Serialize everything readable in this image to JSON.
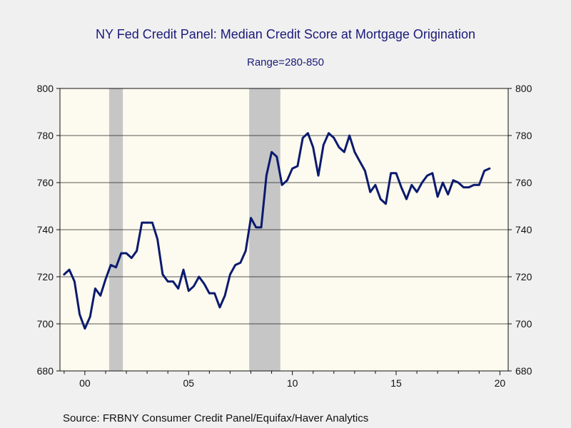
{
  "chart_data": {
    "type": "line",
    "title": "NY Fed Credit Panel: Median Credit Score at Mortgage Origination",
    "subtitle": "Range=280-850",
    "source": "Source:  FRBNY Consumer Credit Panel/Equifax/Haver Analytics",
    "xlabel": "",
    "ylabel": "",
    "xlim": [
      1998.8,
      2020.4
    ],
    "ylim": [
      680,
      800
    ],
    "y_ticks": [
      680,
      700,
      720,
      740,
      760,
      780,
      800
    ],
    "x_ticks": [
      {
        "value": 2000,
        "label": "00"
      },
      {
        "value": 2005,
        "label": "05"
      },
      {
        "value": 2010,
        "label": "10"
      },
      {
        "value": 2015,
        "label": "15"
      },
      {
        "value": 2020,
        "label": "20"
      }
    ],
    "recessions": [
      [
        2001.17,
        2001.83
      ],
      [
        2007.92,
        2009.42
      ]
    ],
    "grid": "horizontal",
    "dual_y_axis": true,
    "colors": {
      "line": "#0a1a6e",
      "plot_bg": "#fdfaef",
      "recession": "#c6c6c6",
      "frame": "#111111"
    },
    "series": [
      {
        "x": [
          1999.0,
          1999.25,
          1999.5,
          1999.75,
          2000.0,
          2000.25,
          2000.5,
          2000.75,
          2001.0,
          2001.25,
          2001.5,
          2001.75,
          2002.0,
          2002.25,
          2002.5,
          2002.75,
          2003.0,
          2003.25,
          2003.5,
          2003.75,
          2004.0,
          2004.25,
          2004.5,
          2004.75,
          2005.0,
          2005.25,
          2005.5,
          2005.75,
          2006.0,
          2006.25,
          2006.5,
          2006.75,
          2007.0,
          2007.25,
          2007.5,
          2007.75,
          2008.0,
          2008.25,
          2008.5,
          2008.75,
          2009.0,
          2009.25,
          2009.5,
          2009.75,
          2010.0,
          2010.25,
          2010.5,
          2010.75,
          2011.0,
          2011.25,
          2011.5,
          2011.75,
          2012.0,
          2012.25,
          2012.5,
          2012.75,
          2013.0,
          2013.25,
          2013.5,
          2013.75,
          2014.0,
          2014.25,
          2014.5,
          2014.75,
          2015.0,
          2015.25,
          2015.5,
          2015.75,
          2016.0,
          2016.25,
          2016.5,
          2016.75,
          2017.0,
          2017.25,
          2017.5,
          2017.75,
          2018.0,
          2018.25,
          2018.5,
          2018.75,
          2019.0,
          2019.25,
          2019.5
        ],
        "values": [
          721,
          723,
          718,
          704,
          698,
          703,
          715,
          712,
          719,
          725,
          724,
          730,
          730,
          728,
          731,
          743,
          743,
          743,
          736,
          721,
          718,
          718,
          715,
          723,
          714,
          716,
          720,
          717,
          713,
          713,
          707,
          712,
          721,
          725,
          726,
          731,
          745,
          741,
          741,
          763,
          773,
          771,
          759,
          761,
          766,
          767,
          779,
          781,
          775,
          763,
          776,
          781,
          779,
          775,
          773,
          780,
          773,
          769,
          765,
          756,
          759,
          753,
          751,
          764,
          764,
          758,
          753,
          759,
          756,
          760,
          763,
          764,
          754,
          760,
          755,
          761,
          760,
          758,
          758,
          759,
          759,
          765,
          766
        ]
      }
    ]
  }
}
